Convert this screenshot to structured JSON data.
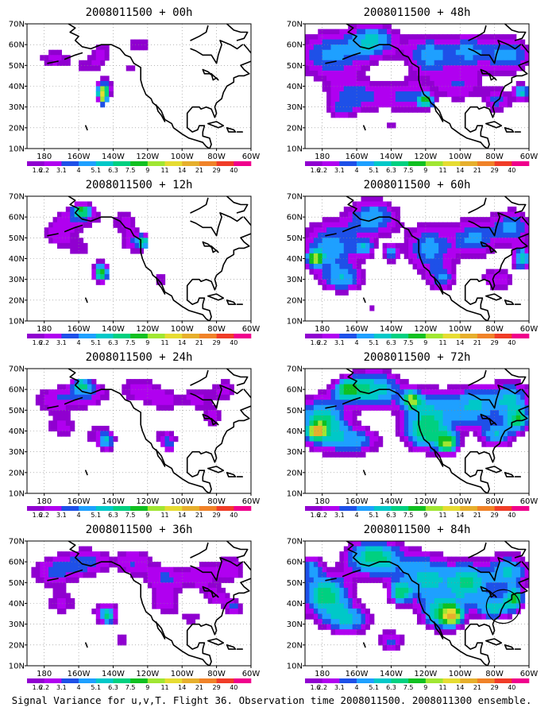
{
  "caption": "Signal Variance for u,v,T. Flight 36. Observation time 2008011500. 2008011300 ensemble.",
  "palette": [
    "#9000d0",
    "#b000f0",
    "#1e50e8",
    "#1ea0ff",
    "#00c8c8",
    "#00d080",
    "#10c020",
    "#a0e632",
    "#e6dc32",
    "#e6af2d",
    "#f08228",
    "#f03c28",
    "#f0008c"
  ],
  "chart_data": {
    "type": "heatmap",
    "map_extent": {
      "lon": [
        -190,
        -60
      ],
      "lat": [
        10,
        70
      ]
    },
    "x_ticks": [
      "180",
      "160W",
      "140W",
      "120W",
      "100W",
      "80W",
      "60W"
    ],
    "y_ticks": [
      "10N",
      "20N",
      "30N",
      "40N",
      "50N",
      "60N",
      "70N"
    ],
    "colorbar_levels": [
      "1.6",
      "2.2",
      "3.1",
      "4",
      "5.1",
      "6.3",
      "7.5",
      "9",
      "11",
      "14",
      "21",
      "29",
      "40"
    ],
    "grid": true,
    "panels": [
      {
        "title": "2008011500 + 00h",
        "blobs": [
          [
            -174,
            53,
            12,
            6,
            2.4
          ],
          [
            -147,
            57,
            7,
            7,
            2.2
          ],
          [
            -154,
            49,
            9,
            6,
            1.8
          ],
          [
            -125,
            60,
            10,
            5,
            2.0
          ],
          [
            -130,
            48,
            9,
            5,
            1.7
          ],
          [
            -145,
            39,
            5,
            5,
            3.2
          ],
          [
            -146,
            37,
            3,
            3,
            9.5
          ],
          [
            -146,
            33,
            2,
            2,
            6
          ],
          [
            -166,
            67,
            6,
            3,
            1.6
          ],
          [
            -125,
            37,
            3,
            3,
            1.2
          ]
        ],
        "circle": null
      },
      {
        "title": "2008011500 + 48h",
        "blobs": [
          [
            -175,
            55,
            22,
            12,
            4.2
          ],
          [
            -150,
            62,
            14,
            8,
            4.8
          ],
          [
            -118,
            55,
            14,
            10,
            4.5
          ],
          [
            -95,
            57,
            12,
            9,
            3.8
          ],
          [
            -72,
            55,
            14,
            9,
            4.5
          ],
          [
            -160,
            35,
            18,
            8,
            3.6
          ],
          [
            -130,
            35,
            14,
            8,
            3.2
          ],
          [
            -100,
            40,
            14,
            8,
            3.0
          ],
          [
            -78,
            33,
            8,
            6,
            3.4
          ],
          [
            -64,
            37,
            5,
            4,
            5.5
          ],
          [
            -120,
            33,
            4,
            3,
            6.5
          ],
          [
            -170,
            28,
            8,
            4,
            2.3
          ],
          [
            -140,
            20,
            4,
            3,
            2.0
          ]
        ],
        "circle": null
      },
      {
        "title": "2008011500 + 12h",
        "blobs": [
          [
            -160,
            60,
            14,
            6,
            3.0
          ],
          [
            -158,
            63,
            5,
            3,
            6.0
          ],
          [
            -172,
            52,
            10,
            6,
            2.6
          ],
          [
            -133,
            58,
            9,
            6,
            2.2
          ],
          [
            -128,
            48,
            8,
            6,
            3.0
          ],
          [
            -123,
            48,
            3,
            3,
            5.5
          ],
          [
            -147,
            34,
            6,
            6,
            3.4
          ],
          [
            -147,
            33,
            3,
            3,
            6.0
          ],
          [
            -160,
            45,
            12,
            6,
            1.8
          ],
          [
            -113,
            30,
            4,
            4,
            2.4
          ],
          [
            -80,
            43,
            4,
            3,
            1.8
          ],
          [
            -106,
            53,
            5,
            4,
            1.6
          ]
        ],
        "circle": null
      },
      {
        "title": "2008011500 + 60h",
        "blobs": [
          [
            -175,
            45,
            18,
            14,
            4.5
          ],
          [
            -184,
            40,
            4,
            3,
            9.0
          ],
          [
            -150,
            60,
            14,
            9,
            4.8
          ],
          [
            -118,
            45,
            14,
            12,
            4.6
          ],
          [
            -92,
            50,
            12,
            10,
            4.2
          ],
          [
            -70,
            55,
            12,
            9,
            4.2
          ],
          [
            -168,
            30,
            12,
            6,
            3.8
          ],
          [
            -110,
            30,
            8,
            6,
            3.5
          ],
          [
            -78,
            30,
            10,
            6,
            3.2
          ],
          [
            -64,
            40,
            5,
            5,
            6.0
          ],
          [
            -140,
            43,
            4,
            4,
            4.5
          ],
          [
            -155,
            45,
            5,
            4,
            3.8
          ],
          [
            -152,
            16,
            2,
            3,
            2.5
          ]
        ],
        "circle": null
      },
      {
        "title": "2008011500 + 24h",
        "blobs": [
          [
            -175,
            55,
            14,
            7,
            2.6
          ],
          [
            -155,
            58,
            14,
            7,
            3.2
          ],
          [
            -158,
            62,
            5,
            3,
            5.0
          ],
          [
            -125,
            60,
            11,
            7,
            2.8
          ],
          [
            -110,
            55,
            9,
            6,
            2.6
          ],
          [
            -92,
            56,
            9,
            6,
            2.6
          ],
          [
            -170,
            42,
            10,
            6,
            2.4
          ],
          [
            -148,
            38,
            11,
            7,
            2.2
          ],
          [
            -144,
            35,
            4,
            4,
            4.0
          ],
          [
            -110,
            38,
            10,
            5,
            2.0
          ],
          [
            -108,
            33,
            4,
            4,
            3.0
          ],
          [
            -82,
            47,
            7,
            5,
            2.6
          ],
          [
            -75,
            60,
            8,
            6,
            2.6
          ],
          [
            -155,
            17,
            3,
            2,
            2.0
          ]
        ],
        "circle": null
      },
      {
        "title": "2008011500 + 72h",
        "blobs": [
          [
            -180,
            44,
            14,
            12,
            7.0
          ],
          [
            -183,
            40,
            4,
            3,
            11.5
          ],
          [
            -150,
            60,
            16,
            9,
            6.0
          ],
          [
            -118,
            48,
            16,
            12,
            5.0
          ],
          [
            -92,
            52,
            14,
            10,
            5.0
          ],
          [
            -70,
            55,
            12,
            9,
            5.0
          ],
          [
            -160,
            35,
            14,
            7,
            4.2
          ],
          [
            -120,
            38,
            12,
            8,
            4.5
          ],
          [
            -107,
            34,
            6,
            5,
            7.5
          ],
          [
            -78,
            38,
            10,
            6,
            4.8
          ],
          [
            -66,
            45,
            6,
            5,
            6.0
          ],
          [
            -128,
            55,
            5,
            4,
            7.2
          ],
          [
            -165,
            60,
            8,
            5,
            5.8
          ]
        ],
        "circle": null
      },
      {
        "title": "2008011500 + 36h",
        "blobs": [
          [
            -175,
            55,
            14,
            8,
            3.2
          ],
          [
            -155,
            60,
            14,
            7,
            3.6
          ],
          [
            -128,
            60,
            11,
            7,
            3.0
          ],
          [
            -110,
            52,
            12,
            7,
            3.2
          ],
          [
            -90,
            53,
            10,
            7,
            2.8
          ],
          [
            -72,
            57,
            10,
            7,
            3.0
          ],
          [
            -170,
            40,
            10,
            6,
            2.4
          ],
          [
            -145,
            36,
            10,
            7,
            2.4
          ],
          [
            -143,
            34,
            4,
            4,
            4.4
          ],
          [
            -110,
            40,
            10,
            6,
            2.6
          ],
          [
            -95,
            33,
            8,
            5,
            2.0
          ],
          [
            -80,
            43,
            8,
            5,
            2.6
          ],
          [
            -70,
            38,
            5,
            4,
            3.4
          ],
          [
            -135,
            22,
            6,
            4,
            2.0
          ]
        ],
        "circle": null
      },
      {
        "title": "2008011500 + 84h",
        "blobs": [
          [
            -178,
            44,
            14,
            10,
            7.0
          ],
          [
            -150,
            62,
            16,
            9,
            7.0
          ],
          [
            -120,
            52,
            16,
            12,
            5.5
          ],
          [
            -95,
            50,
            12,
            10,
            6.0
          ],
          [
            -72,
            55,
            12,
            9,
            5.2
          ],
          [
            -165,
            32,
            14,
            7,
            4.8
          ],
          [
            -110,
            35,
            12,
            8,
            6.2
          ],
          [
            -105,
            34,
            5,
            4,
            10.0
          ],
          [
            -80,
            38,
            10,
            6,
            5.5
          ],
          [
            -68,
            42,
            5,
            5,
            7.0
          ],
          [
            -186,
            58,
            6,
            6,
            3.6
          ],
          [
            -140,
            22,
            8,
            5,
            3.5
          ],
          [
            -135,
            45,
            6,
            5,
            5.8
          ]
        ],
        "circle": {
          "lon": -75,
          "lat": 38.5,
          "r": 8
        }
      }
    ]
  }
}
